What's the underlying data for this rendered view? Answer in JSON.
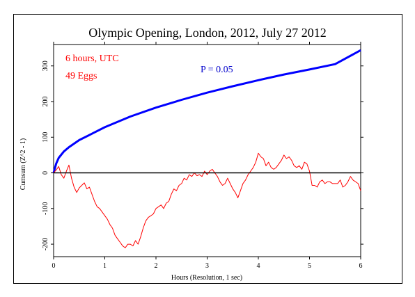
{
  "chart_data": {
    "type": "line",
    "title": "Olympic Opening, London, 2012, July 27 2012",
    "xlabel": "Hours (Resolution, 1 sec)",
    "ylabel": "Cumsum (Z^2 - 1)",
    "xlim": [
      0,
      6
    ],
    "ylim": [
      -235,
      360
    ],
    "xticks": [
      "0",
      "1",
      "2",
      "3",
      "4",
      "5",
      "6"
    ],
    "yticks": [
      "-200",
      "-100",
      "0",
      "100",
      "200",
      "300"
    ],
    "grid": false,
    "annotations": {
      "duration": "6 hours, UTC",
      "eggs": "49 Eggs",
      "p_label": "P = 0.05"
    },
    "colors": {
      "cumsum": "#ff0000",
      "probability": "#0000ff",
      "baseline": "#000000",
      "annotation_red": "#ff0000",
      "annotation_blue": "#0000cc"
    },
    "series": [
      {
        "key": "probability_envelope",
        "x": [
          0,
          0.05,
          0.1,
          0.2,
          0.3,
          0.5,
          0.75,
          1.0,
          1.5,
          2.0,
          2.5,
          3.0,
          3.5,
          4.0,
          4.5,
          5.0,
          5.5,
          6.0
        ],
        "y": [
          0,
          26,
          42,
          60,
          72,
          92,
          110,
          128,
          158,
          183,
          205,
          225,
          243,
          260,
          276,
          290,
          305,
          344
        ]
      },
      {
        "key": "cumulative_deviation",
        "x": [
          0,
          0.05,
          0.1,
          0.15,
          0.2,
          0.25,
          0.3,
          0.35,
          0.4,
          0.45,
          0.5,
          0.55,
          0.6,
          0.65,
          0.7,
          0.75,
          0.8,
          0.85,
          0.9,
          0.95,
          1.0,
          1.05,
          1.1,
          1.15,
          1.2,
          1.25,
          1.3,
          1.35,
          1.4,
          1.45,
          1.5,
          1.55,
          1.6,
          1.65,
          1.7,
          1.75,
          1.8,
          1.85,
          1.9,
          1.95,
          2.0,
          2.05,
          2.1,
          2.15,
          2.2,
          2.25,
          2.3,
          2.35,
          2.4,
          2.45,
          2.5,
          2.55,
          2.6,
          2.65,
          2.7,
          2.75,
          2.8,
          2.85,
          2.9,
          2.95,
          3.0,
          3.05,
          3.1,
          3.15,
          3.2,
          3.25,
          3.3,
          3.35,
          3.4,
          3.45,
          3.5,
          3.55,
          3.6,
          3.65,
          3.7,
          3.75,
          3.8,
          3.85,
          3.9,
          3.95,
          4.0,
          4.05,
          4.1,
          4.15,
          4.2,
          4.25,
          4.3,
          4.35,
          4.4,
          4.45,
          4.5,
          4.55,
          4.6,
          4.65,
          4.7,
          4.75,
          4.8,
          4.85,
          4.9,
          4.95,
          5.0,
          5.05,
          5.1,
          5.15,
          5.2,
          5.25,
          5.3,
          5.35,
          5.4,
          5.45,
          5.5,
          5.55,
          5.6,
          5.65,
          5.7,
          5.75,
          5.8,
          5.85,
          5.9,
          5.95,
          6.0
        ],
        "y": [
          0,
          8,
          18,
          -5,
          -15,
          5,
          22,
          -15,
          -40,
          -55,
          -42,
          -35,
          -28,
          -45,
          -40,
          -60,
          -80,
          -95,
          -100,
          -110,
          -120,
          -130,
          -145,
          -155,
          -175,
          -185,
          -195,
          -205,
          -210,
          -200,
          -200,
          -205,
          -190,
          -200,
          -180,
          -155,
          -135,
          -125,
          -120,
          -115,
          -100,
          -95,
          -90,
          -100,
          -85,
          -80,
          -60,
          -45,
          -50,
          -35,
          -30,
          -15,
          -20,
          -5,
          -10,
          0,
          -8,
          -5,
          -10,
          5,
          -5,
          5,
          10,
          0,
          -10,
          -25,
          -35,
          -30,
          -15,
          -30,
          -45,
          -55,
          -70,
          -50,
          -30,
          -20,
          -5,
          5,
          15,
          30,
          55,
          45,
          40,
          20,
          30,
          15,
          10,
          15,
          25,
          35,
          50,
          40,
          45,
          35,
          20,
          15,
          20,
          10,
          30,
          25,
          5,
          -35,
          -35,
          -40,
          -25,
          -20,
          -30,
          -25,
          -25,
          -30,
          -30,
          -30,
          -20,
          -40,
          -35,
          -25,
          -10,
          -20,
          -25,
          -30,
          -50
        ]
      },
      {
        "key": "zero_reference",
        "x": [
          0,
          6
        ],
        "y": [
          0,
          0
        ]
      }
    ]
  }
}
